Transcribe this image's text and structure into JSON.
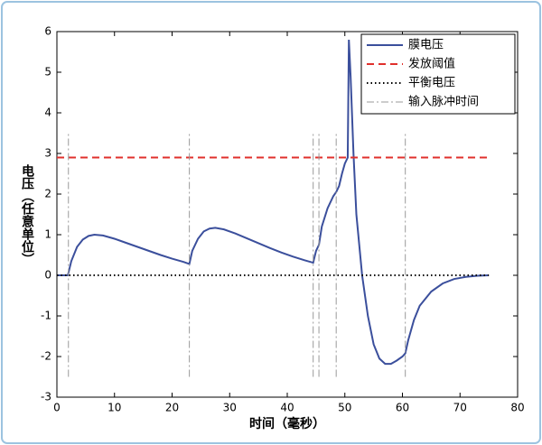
{
  "chart_data": {
    "type": "line",
    "xlabel": "时间（毫秒）",
    "ylabel": "电压（任意单位）",
    "xlim": [
      0,
      80
    ],
    "xticks": [
      0,
      10,
      20,
      30,
      40,
      50,
      60,
      70,
      80
    ],
    "ylim": [
      -3,
      6
    ],
    "yticks": [
      -3,
      -2,
      -1,
      0,
      1,
      2,
      3,
      4,
      5,
      6
    ],
    "legend": "upper right",
    "series": [
      {
        "name": "膜电压",
        "color": "#3b4f9c",
        "style": "solid",
        "x": [
          0,
          1.9,
          2.5,
          3.5,
          4.5,
          5.5,
          6.5,
          8,
          10,
          12,
          14,
          16,
          18,
          20,
          22,
          23,
          23.5,
          24.5,
          25.5,
          26.5,
          27.5,
          29,
          31,
          33,
          35,
          37,
          39,
          41,
          43,
          44.5,
          45,
          45.5,
          46,
          47,
          48,
          48.5,
          49,
          49.5,
          50,
          50.5,
          50.7,
          51,
          51.5,
          52,
          53,
          54,
          55,
          56,
          57,
          58,
          59,
          60,
          60.5,
          61,
          62,
          63,
          65,
          67,
          69,
          71,
          73,
          75
        ],
        "values": [
          0,
          0,
          0.35,
          0.7,
          0.88,
          0.97,
          1.0,
          0.98,
          0.9,
          0.8,
          0.7,
          0.6,
          0.5,
          0.41,
          0.33,
          0.28,
          0.6,
          0.9,
          1.08,
          1.15,
          1.17,
          1.13,
          1.03,
          0.91,
          0.79,
          0.67,
          0.56,
          0.46,
          0.37,
          0.31,
          0.6,
          0.75,
          1.2,
          1.65,
          1.95,
          2.05,
          2.2,
          2.5,
          2.75,
          2.9,
          5.8,
          4.9,
          3.0,
          1.5,
          0,
          -1.0,
          -1.7,
          -2.05,
          -2.18,
          -2.18,
          -2.1,
          -2.0,
          -1.92,
          -1.6,
          -1.1,
          -0.75,
          -0.4,
          -0.2,
          -0.09,
          -0.04,
          -0.01,
          0
        ]
      },
      {
        "name": "发放阈值",
        "color": "#e0302c",
        "style": "dashed",
        "x": [
          0,
          75
        ],
        "values": [
          2.9,
          2.9
        ]
      },
      {
        "name": "平衡电压",
        "color": "#000000",
        "style": "dotted",
        "x": [
          0,
          75
        ],
        "values": [
          0,
          0
        ]
      },
      {
        "name": "输入脉冲时间",
        "color": "#9a9a9a",
        "style": "dashdot",
        "x": [
          2,
          23,
          44.5,
          45.5,
          48.5,
          60.5
        ],
        "values": [
          [
            -2.5,
            3.5
          ],
          [
            -2.5,
            3.5
          ],
          [
            -2.5,
            3.5
          ],
          [
            -2.5,
            3.5
          ],
          [
            -2.5,
            3.5
          ],
          [
            -2.5,
            3.5
          ]
        ]
      }
    ]
  }
}
